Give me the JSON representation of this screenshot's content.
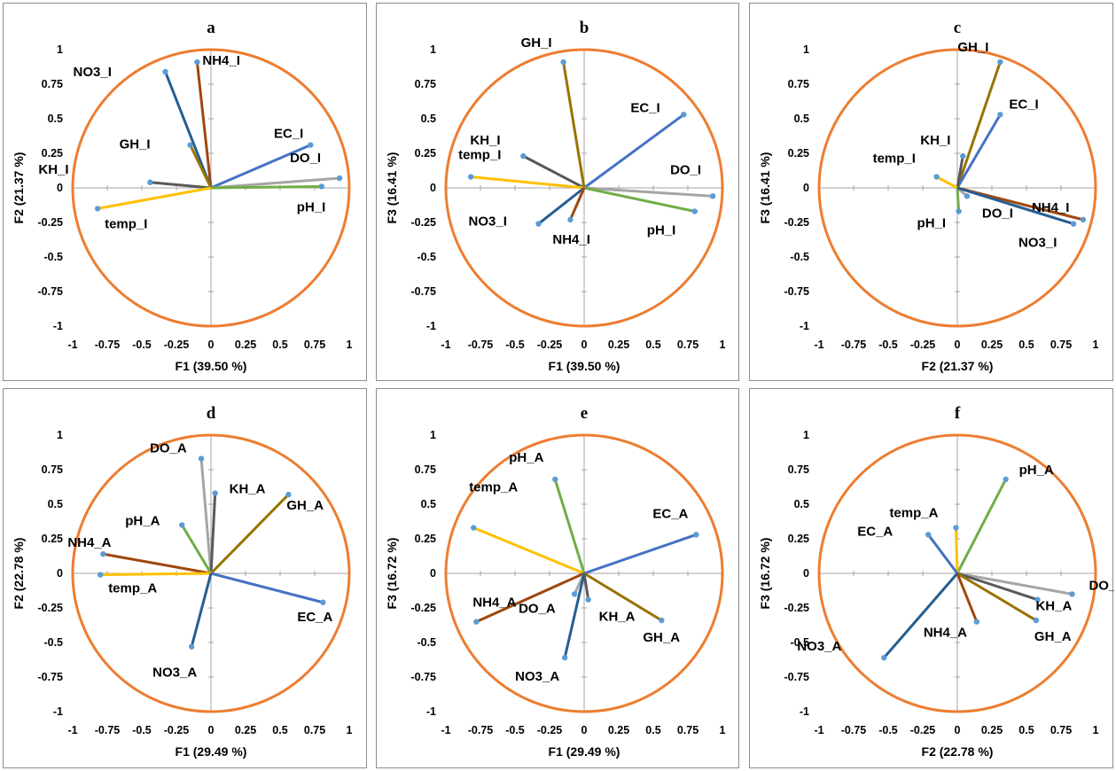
{
  "colors": {
    "circle": "#ed7d31",
    "axis": "#a6a6a6",
    "marker": "#5b9bd5",
    "pH": "#70ad47",
    "DO": "#a5a5a5",
    "EC": "#4472c4",
    "temp": "#ffc000",
    "KH": "#595959",
    "GH": "#997300",
    "NO3": "#255e91",
    "NH4": "#9e480e"
  },
  "chart_data": [
    {
      "type": "scatter",
      "title": "a",
      "xlabel": "F1 (39.50 %)",
      "ylabel": "F2 (21.37 %)",
      "xlim": [
        -1,
        1
      ],
      "ylim": [
        -1,
        1
      ],
      "xticks": [
        "-1",
        "-0.75",
        "-0.5",
        "-0.25",
        "0",
        "0.25",
        "0.5",
        "0.75",
        "1"
      ],
      "yticks": [
        "1",
        "0.75",
        "0.5",
        "0.25",
        "0",
        "-0.25",
        "-0.5",
        "-0.75",
        "-1"
      ],
      "vectors": [
        {
          "label": "NH4_I",
          "x": -0.1,
          "y": 0.91,
          "color": "NH4"
        },
        {
          "label": "NO3_I",
          "x": -0.33,
          "y": 0.84,
          "color": "NO3"
        },
        {
          "label": "GH_I",
          "x": -0.15,
          "y": 0.31,
          "color": "GH"
        },
        {
          "label": "KH_I",
          "x": -0.44,
          "y": 0.04,
          "color": "KH"
        },
        {
          "label": "temp_I",
          "x": -0.82,
          "y": -0.15,
          "color": "temp"
        },
        {
          "label": "EC_I",
          "x": 0.72,
          "y": 0.31,
          "color": "EC"
        },
        {
          "label": "DO_I",
          "x": 0.93,
          "y": 0.07,
          "color": "DO"
        },
        {
          "label": "pH_I",
          "x": 0.8,
          "y": 0.01,
          "color": "pH"
        }
      ]
    },
    {
      "type": "scatter",
      "title": "b",
      "xlabel": "F1 (39.50 %)",
      "ylabel": "F3 (16.41 %)",
      "xlim": [
        -1,
        1
      ],
      "ylim": [
        -1,
        1
      ],
      "xticks": [
        "-1",
        "-0.75",
        "-0.5",
        "-0.25",
        "0",
        "0.25",
        "0.5",
        "0.75",
        "1"
      ],
      "yticks": [
        "1",
        "0.75",
        "0.5",
        "0.25",
        "0",
        "-0.25",
        "-0.5",
        "-0.75",
        "-1"
      ],
      "vectors": [
        {
          "label": "GH_I",
          "x": -0.15,
          "y": 0.91,
          "color": "GH"
        },
        {
          "label": "EC_I",
          "x": 0.72,
          "y": 0.53,
          "color": "EC"
        },
        {
          "label": "KH_I",
          "x": -0.44,
          "y": 0.23,
          "color": "KH"
        },
        {
          "label": "temp_I",
          "x": -0.82,
          "y": 0.08,
          "color": "temp"
        },
        {
          "label": "DO_I",
          "x": 0.93,
          "y": -0.06,
          "color": "DO"
        },
        {
          "label": "pH_I",
          "x": 0.8,
          "y": -0.17,
          "color": "pH"
        },
        {
          "label": "NO3_I",
          "x": -0.33,
          "y": -0.26,
          "color": "NO3"
        },
        {
          "label": "NH4_I",
          "x": -0.1,
          "y": -0.23,
          "color": "NH4"
        }
      ]
    },
    {
      "type": "scatter",
      "title": "c",
      "xlabel": "F2 (21.37 %)",
      "ylabel": "F3 (16.41 %)",
      "xlim": [
        -1,
        1
      ],
      "ylim": [
        -1,
        1
      ],
      "xticks": [
        "-1",
        "-0.75",
        "-0.5",
        "-0.25",
        "0",
        "0.25",
        "0.5",
        "0.75",
        "1"
      ],
      "yticks": [
        "1",
        "0.75",
        "0.5",
        "0.25",
        "0",
        "-0.25",
        "-0.5",
        "-0.75",
        "-1"
      ],
      "vectors": [
        {
          "label": "GH_I",
          "x": 0.31,
          "y": 0.91,
          "color": "GH"
        },
        {
          "label": "EC_I",
          "x": 0.31,
          "y": 0.53,
          "color": "EC"
        },
        {
          "label": "KH_I",
          "x": 0.04,
          "y": 0.23,
          "color": "KH"
        },
        {
          "label": "temp_I",
          "x": -0.15,
          "y": 0.08,
          "color": "temp"
        },
        {
          "label": "pH_I",
          "x": 0.01,
          "y": -0.17,
          "color": "pH"
        },
        {
          "label": "DO_I",
          "x": 0.07,
          "y": -0.06,
          "color": "DO"
        },
        {
          "label": "NH4_I",
          "x": 0.91,
          "y": -0.23,
          "color": "NH4"
        },
        {
          "label": "NO3_I",
          "x": 0.84,
          "y": -0.26,
          "color": "NO3"
        }
      ]
    },
    {
      "type": "scatter",
      "title": "d",
      "xlabel": "F1 (29.49 %)",
      "ylabel": "F2 (22.78 %)",
      "xlim": [
        -1,
        1
      ],
      "ylim": [
        -1,
        1
      ],
      "xticks": [
        "-1",
        "-0.75",
        "-0.5",
        "-0.25",
        "0",
        "0.25",
        "0.5",
        "0.75",
        "1"
      ],
      "yticks": [
        "1",
        "0.75",
        "0.5",
        "0.25",
        "0",
        "-0.25",
        "-0.5",
        "-0.75",
        "-1"
      ],
      "vectors": [
        {
          "label": "DO_A",
          "x": -0.07,
          "y": 0.83,
          "color": "DO"
        },
        {
          "label": "KH_A",
          "x": 0.03,
          "y": 0.58,
          "color": "KH"
        },
        {
          "label": "GH_A",
          "x": 0.56,
          "y": 0.57,
          "color": "GH"
        },
        {
          "label": "pH_A",
          "x": -0.21,
          "y": 0.35,
          "color": "pH"
        },
        {
          "label": "NH4_A",
          "x": -0.78,
          "y": 0.14,
          "color": "NH4"
        },
        {
          "label": "temp_A",
          "x": -0.8,
          "y": -0.01,
          "color": "temp"
        },
        {
          "label": "EC_A",
          "x": 0.81,
          "y": -0.21,
          "color": "EC"
        },
        {
          "label": "NO3_A",
          "x": -0.14,
          "y": -0.53,
          "color": "NO3"
        }
      ]
    },
    {
      "type": "scatter",
      "title": "e",
      "xlabel": "F1 (29.49 %)",
      "ylabel": "F3 (16.72 %)",
      "xlim": [
        -1,
        1
      ],
      "ylim": [
        -1,
        1
      ],
      "xticks": [
        "-1",
        "-0.75",
        "-0.5",
        "-0.25",
        "0",
        "0.25",
        "0.5",
        "0.75",
        "1"
      ],
      "yticks": [
        "1",
        "0.75",
        "0.5",
        "0.25",
        "0",
        "-0.25",
        "-0.5",
        "-0.75",
        "-1"
      ],
      "vectors": [
        {
          "label": "pH_A",
          "x": -0.21,
          "y": 0.68,
          "color": "pH"
        },
        {
          "label": "temp_A",
          "x": -0.8,
          "y": 0.33,
          "color": "temp"
        },
        {
          "label": "EC_A",
          "x": 0.81,
          "y": 0.28,
          "color": "EC"
        },
        {
          "label": "NH4_A",
          "x": -0.78,
          "y": -0.35,
          "color": "NH4"
        },
        {
          "label": "DO_A",
          "x": -0.07,
          "y": -0.15,
          "color": "DO"
        },
        {
          "label": "KH_A",
          "x": 0.03,
          "y": -0.19,
          "color": "KH"
        },
        {
          "label": "GH_A",
          "x": 0.56,
          "y": -0.34,
          "color": "GH"
        },
        {
          "label": "NO3_A",
          "x": -0.14,
          "y": -0.61,
          "color": "NO3"
        }
      ]
    },
    {
      "type": "scatter",
      "title": "f",
      "xlabel": "F2 (22.78 %)",
      "ylabel": "F3 (16.72 %)",
      "xlim": [
        -1,
        1
      ],
      "ylim": [
        -1,
        1
      ],
      "xticks": [
        "-1",
        "-0.75",
        "-0.5",
        "-0.25",
        "0",
        "0.25",
        "0.5",
        "0.75",
        "1"
      ],
      "yticks": [
        "1",
        "0.75",
        "0.5",
        "0.25",
        "0",
        "-0.25",
        "-0.5",
        "-0.75",
        "-1"
      ],
      "vectors": [
        {
          "label": "pH_A",
          "x": 0.35,
          "y": 0.68,
          "color": "pH"
        },
        {
          "label": "temp_A",
          "x": -0.01,
          "y": 0.33,
          "color": "temp"
        },
        {
          "label": "EC_A",
          "x": -0.21,
          "y": 0.28,
          "color": "EC"
        },
        {
          "label": "DO_A",
          "x": 0.83,
          "y": -0.15,
          "color": "DO"
        },
        {
          "label": "KH_A",
          "x": 0.58,
          "y": -0.19,
          "color": "KH"
        },
        {
          "label": "GH_A",
          "x": 0.57,
          "y": -0.34,
          "color": "GH"
        },
        {
          "label": "NH4_A",
          "x": 0.14,
          "y": -0.35,
          "color": "NH4"
        },
        {
          "label": "NO3_A",
          "x": -0.53,
          "y": -0.61,
          "color": "NO3"
        }
      ]
    }
  ]
}
